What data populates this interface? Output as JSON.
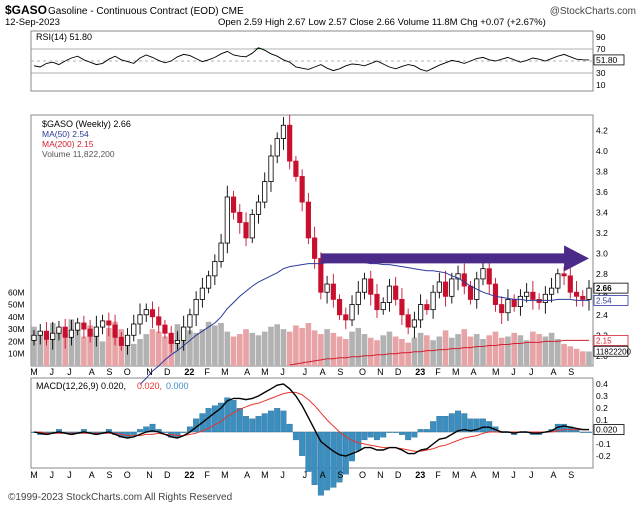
{
  "header": {
    "symbol": "$GASO",
    "description": "Gasoline - Continuous Contract (EOD) CME",
    "date": "12-Sep-2023",
    "ohlc": "Open 2.59  High 2.67  Low 2.57  Close 2.66  Volume 11.8M  Chg +0.07 (+2.67%)",
    "brand": "@StockCharts.com"
  },
  "footer": {
    "copyright": "©1999-2023 StockCharts.com All Rights Reserved"
  },
  "colors": {
    "up_candle": "#000000",
    "down_candle": "#c8102e",
    "ma50": "#2b3a9a",
    "ma200": "#d21f2f",
    "volume_down": "#e7a3a6",
    "volume_up": "#b2b2b2",
    "macd_line": "#000000",
    "signal_line": "#e8332c",
    "histogram": "#3b8fc0",
    "arrow": "#4b2a8a",
    "rsi_fill": "#2e8b2e"
  },
  "chart_data": [
    {
      "type": "line",
      "panel": "rsi",
      "legend": "RSI(14) 51.80",
      "ylim": [
        0,
        100
      ],
      "yticks": [
        10,
        30,
        50,
        70,
        90
      ],
      "last_value_label": "51.80",
      "values": [
        42,
        40,
        46,
        48,
        44,
        50,
        55,
        58,
        52,
        48,
        44,
        46,
        53,
        58,
        52,
        49,
        46,
        55,
        60,
        56,
        51,
        47,
        50,
        57,
        61,
        59,
        54,
        49,
        52,
        56,
        62,
        66,
        60,
        58,
        57,
        63,
        72,
        68,
        62,
        58,
        52,
        48,
        40,
        38,
        36,
        40,
        44,
        38,
        34,
        37,
        42,
        45,
        44,
        42,
        46,
        50,
        45,
        40,
        37,
        41,
        44,
        42,
        36,
        33,
        38,
        43,
        47,
        51,
        49,
        46,
        50,
        54,
        56,
        52,
        50,
        53,
        56,
        52,
        48,
        51,
        55,
        53,
        50,
        54,
        58,
        61,
        57,
        53,
        52,
        51.8
      ]
    },
    {
      "type": "candlestick",
      "panel": "price",
      "legend": [
        "$GASO (Weekly) 2.66",
        "MA(50) 2.54",
        "MA(200) 2.15",
        "Volume 11,822,200"
      ],
      "ylim": [
        1.9,
        4.35
      ],
      "yticks": [
        2.0,
        2.2,
        2.4,
        2.6,
        2.8,
        3.0,
        3.2,
        3.4,
        3.6,
        3.8,
        4.0,
        4.2
      ],
      "last_labels": {
        "close": "2.66",
        "ma50": "2.54",
        "ma200": "2.15",
        "volume": "11822200"
      },
      "volume_ylim": [
        0,
        70
      ],
      "volume_ticks": [
        "10M",
        "20M",
        "30M",
        "40M",
        "50M",
        "60M"
      ],
      "volume_tick_values": [
        10,
        20,
        30,
        40,
        50,
        60
      ],
      "closes": [
        2.2,
        2.24,
        2.16,
        2.22,
        2.28,
        2.18,
        2.25,
        2.32,
        2.26,
        2.19,
        2.28,
        2.34,
        2.3,
        2.18,
        2.1,
        2.2,
        2.31,
        2.4,
        2.45,
        2.38,
        2.3,
        2.22,
        2.12,
        2.15,
        2.28,
        2.4,
        2.55,
        2.66,
        2.78,
        2.92,
        3.1,
        3.55,
        3.4,
        3.3,
        3.15,
        3.38,
        3.5,
        3.7,
        3.95,
        4.12,
        4.25,
        3.9,
        3.75,
        3.5,
        3.15,
        2.95,
        2.62,
        2.7,
        2.55,
        2.4,
        2.35,
        2.5,
        2.62,
        2.75,
        2.6,
        2.45,
        2.52,
        2.68,
        2.55,
        2.4,
        2.28,
        2.35,
        2.5,
        2.45,
        2.62,
        2.72,
        2.58,
        2.75,
        2.8,
        2.68,
        2.55,
        2.75,
        2.85,
        2.7,
        2.5,
        2.42,
        2.55,
        2.48,
        2.58,
        2.62,
        2.55,
        2.52,
        2.6,
        2.66,
        2.8,
        2.78,
        2.62,
        2.58,
        2.55,
        2.66
      ],
      "ma50": [
        null,
        null,
        null,
        null,
        null,
        null,
        null,
        null,
        null,
        null,
        null,
        null,
        null,
        null,
        null,
        null,
        null,
        1.72,
        1.78,
        1.85,
        1.9,
        1.96,
        2.01,
        2.05,
        2.1,
        2.15,
        2.2,
        2.24,
        2.28,
        2.32,
        2.38,
        2.46,
        2.52,
        2.58,
        2.63,
        2.68,
        2.72,
        2.75,
        2.78,
        2.81,
        2.85,
        2.87,
        2.88,
        2.89,
        2.9,
        2.9,
        2.9,
        2.91,
        2.91,
        2.91,
        2.91,
        2.91,
        2.91,
        2.91,
        2.9,
        2.9,
        2.89,
        2.89,
        2.88,
        2.87,
        2.86,
        2.85,
        2.84,
        2.83,
        2.83,
        2.82,
        2.81,
        2.78,
        2.76,
        2.72,
        2.68,
        2.65,
        2.62,
        2.6,
        2.58,
        2.57,
        2.56,
        2.55,
        2.55,
        2.54,
        2.54,
        2.54,
        2.54,
        2.54,
        2.55,
        2.55,
        2.55,
        2.54,
        2.54,
        2.54
      ],
      "ma200": [
        null,
        null,
        null,
        null,
        null,
        null,
        null,
        null,
        null,
        null,
        null,
        null,
        null,
        null,
        null,
        null,
        null,
        null,
        null,
        null,
        null,
        null,
        null,
        null,
        null,
        null,
        null,
        null,
        null,
        null,
        null,
        null,
        null,
        null,
        null,
        null,
        null,
        null,
        null,
        null,
        null,
        1.91,
        1.92,
        1.93,
        1.94,
        1.95,
        1.96,
        1.97,
        1.97,
        1.98,
        1.98,
        1.99,
        1.99,
        2.0,
        2.0,
        2.01,
        2.01,
        2.02,
        2.02,
        2.03,
        2.03,
        2.04,
        2.04,
        2.05,
        2.05,
        2.06,
        2.06,
        2.07,
        2.07,
        2.08,
        2.08,
        2.09,
        2.09,
        2.1,
        2.1,
        2.11,
        2.11,
        2.12,
        2.12,
        2.13,
        2.13,
        2.13,
        2.14,
        2.14,
        2.14,
        2.15,
        2.15,
        2.15,
        2.15,
        2.15
      ],
      "volumes": [
        32,
        28,
        22,
        35,
        30,
        26,
        38,
        29,
        24,
        33,
        27,
        20,
        31,
        36,
        30,
        25,
        18,
        22,
        26,
        30,
        28,
        24,
        21,
        34,
        32,
        29,
        27,
        30,
        36,
        33,
        35,
        28,
        24,
        26,
        30,
        27,
        25,
        28,
        32,
        34,
        30,
        28,
        33,
        31,
        35,
        29,
        26,
        30,
        27,
        24,
        22,
        28,
        31,
        26,
        23,
        21,
        25,
        28,
        24,
        22,
        19,
        23,
        27,
        25,
        21,
        24,
        29,
        23,
        26,
        30,
        24,
        26,
        22,
        25,
        28,
        23,
        24,
        27,
        25,
        21,
        28,
        26,
        24,
        27,
        22,
        18,
        16,
        14,
        12,
        11.8
      ]
    },
    {
      "type": "line",
      "panel": "macd",
      "legend": [
        "MACD(12,26,9) 0.020, 0.020, 0.000",
        "MACD(12,26,9) 0.020",
        "0.020"
      ],
      "legend_parts": {
        "name": "MACD(12,26,9) 0.020,",
        "signal": "0.020,",
        "hist": "0.000"
      },
      "ylim": [
        -0.3,
        0.45
      ],
      "yticks": [
        -0.2,
        -0.1,
        0.1,
        0.2,
        0.3,
        0.4
      ],
      "last_value_label": "0.020",
      "macd": [
        0.0,
        -0.01,
        -0.02,
        -0.01,
        0.0,
        -0.01,
        -0.02,
        -0.01,
        0.0,
        -0.01,
        -0.02,
        -0.01,
        0.0,
        -0.02,
        -0.04,
        -0.05,
        -0.04,
        -0.02,
        0.0,
        0.01,
        0.0,
        -0.02,
        -0.04,
        -0.05,
        -0.03,
        0.0,
        0.04,
        0.08,
        0.12,
        0.16,
        0.2,
        0.26,
        0.28,
        0.28,
        0.27,
        0.28,
        0.3,
        0.33,
        0.36,
        0.39,
        0.4,
        0.36,
        0.3,
        0.22,
        0.12,
        0.02,
        -0.08,
        -0.12,
        -0.16,
        -0.19,
        -0.2,
        -0.18,
        -0.16,
        -0.13,
        -0.13,
        -0.15,
        -0.15,
        -0.13,
        -0.13,
        -0.15,
        -0.18,
        -0.18,
        -0.15,
        -0.14,
        -0.1,
        -0.06,
        -0.05,
        -0.02,
        0.01,
        0.02,
        0.01,
        0.02,
        0.04,
        0.04,
        0.02,
        0.0,
        0.0,
        -0.01,
        0.0,
        0.0,
        -0.01,
        -0.01,
        0.0,
        0.01,
        0.04,
        0.05,
        0.04,
        0.03,
        0.02,
        0.02
      ],
      "signal": [
        0.0,
        0.0,
        -0.01,
        -0.01,
        -0.01,
        -0.01,
        -0.01,
        -0.01,
        -0.01,
        -0.01,
        -0.01,
        -0.01,
        -0.01,
        -0.01,
        -0.02,
        -0.03,
        -0.03,
        -0.03,
        -0.02,
        -0.02,
        -0.01,
        -0.02,
        -0.02,
        -0.03,
        -0.03,
        -0.02,
        -0.01,
        0.01,
        0.03,
        0.06,
        0.09,
        0.13,
        0.16,
        0.19,
        0.21,
        0.23,
        0.24,
        0.26,
        0.28,
        0.3,
        0.32,
        0.33,
        0.33,
        0.31,
        0.27,
        0.22,
        0.16,
        0.1,
        0.05,
        0.0,
        -0.04,
        -0.07,
        -0.09,
        -0.1,
        -0.11,
        -0.12,
        -0.13,
        -0.13,
        -0.13,
        -0.14,
        -0.15,
        -0.16,
        -0.16,
        -0.15,
        -0.14,
        -0.12,
        -0.11,
        -0.09,
        -0.07,
        -0.05,
        -0.04,
        -0.03,
        -0.01,
        0.0,
        0.0,
        0.0,
        0.0,
        0.0,
        0.0,
        0.0,
        0.0,
        0.0,
        0.0,
        0.0,
        0.01,
        0.02,
        0.02,
        0.02,
        0.02,
        0.02
      ]
    }
  ],
  "x_axis": {
    "labels": [
      "M",
      "J",
      "J",
      "A",
      "S",
      "O",
      "N",
      "D",
      "22",
      "F",
      "M",
      "A",
      "M",
      "J",
      "J",
      "A",
      "S",
      "O",
      "N",
      "D",
      "23",
      "F",
      "M",
      "A",
      "M",
      "J",
      "J",
      "A",
      "S"
    ],
    "label_bars": [
      0,
      4,
      8,
      13,
      17,
      21,
      26,
      30,
      35,
      39,
      43,
      48,
      52,
      56,
      61,
      65,
      69,
      74,
      78,
      82,
      87,
      91,
      95,
      99,
      104,
      108,
      112,
      117,
      121
    ],
    "bold_labels": [
      "22",
      "23"
    ]
  }
}
